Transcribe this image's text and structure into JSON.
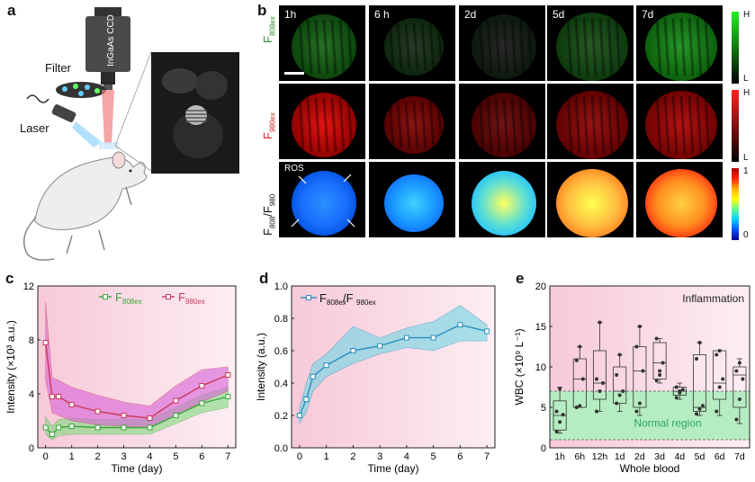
{
  "panels": {
    "a": "a",
    "b": "b",
    "c": "c",
    "d": "d",
    "e": "e"
  },
  "schematic": {
    "filter": "Filter",
    "laser": "Laser",
    "camera": "InGaAs CCD"
  },
  "panel_b": {
    "time_labels": [
      "1h",
      "6 h",
      "2d",
      "5d",
      "7d"
    ],
    "row_labels": [
      {
        "main": "F",
        "sub": "808ex"
      },
      {
        "main": "F",
        "sub": "980ex"
      },
      {
        "main": "F",
        "sub": "808",
        "mid": "/F",
        "sub2": "980"
      }
    ],
    "ros_label": "ROS",
    "green_bar": {
      "high": "H",
      "low": "L",
      "color": "#22dd22"
    },
    "red_bar": {
      "high": "H",
      "low": "L",
      "color": "#ff2020"
    },
    "ratio_bar": {
      "high": "1",
      "low": "0"
    }
  },
  "chart_data": [
    {
      "type": "line",
      "panel": "c",
      "xlabel": "Time (day)",
      "ylabel": "Intensity (×10³ a.u.)",
      "xlim": [
        -0.3,
        7.3
      ],
      "ylim": [
        0,
        12
      ],
      "xticks": [
        0,
        1,
        2,
        3,
        4,
        5,
        6,
        7
      ],
      "yticks": [
        0,
        4,
        8,
        12
      ],
      "series": [
        {
          "name": "F808ex",
          "name_main": "F",
          "name_sub": "808ex",
          "color": "#3aa63a",
          "fill": "#7fdc7f",
          "x": [
            0,
            0.25,
            0.5,
            1,
            2,
            3,
            4,
            5,
            6,
            7
          ],
          "y": [
            1.5,
            1.0,
            1.5,
            1.6,
            1.5,
            1.5,
            1.5,
            2.4,
            3.3,
            3.8
          ],
          "lo": [
            1.0,
            0.6,
            0.9,
            1.0,
            1.0,
            1.0,
            1.0,
            1.8,
            2.6,
            3.0
          ],
          "hi": [
            2.3,
            1.6,
            2.1,
            2.2,
            2.1,
            2.1,
            2.1,
            3.0,
            3.9,
            4.5
          ]
        },
        {
          "name": "F980ex",
          "name_main": "F",
          "name_sub": "980ex",
          "color": "#c83a5a",
          "fill": "#d860d8",
          "x": [
            0,
            0.25,
            0.5,
            1,
            2,
            3,
            4,
            5,
            6,
            7
          ],
          "y": [
            7.8,
            3.8,
            3.8,
            3.2,
            2.7,
            2.4,
            2.2,
            3.5,
            4.6,
            5.4
          ],
          "lo": [
            5.0,
            2.6,
            2.4,
            2.0,
            1.7,
            1.6,
            1.5,
            2.4,
            3.4,
            4.2
          ],
          "hi": [
            10.8,
            5.2,
            5.0,
            4.5,
            3.9,
            3.4,
            3.1,
            4.6,
            5.8,
            6.0
          ]
        }
      ]
    },
    {
      "type": "line",
      "panel": "d",
      "xlabel": "Time (day)",
      "ylabel": "Intensity (a.u.)",
      "xlim": [
        -0.3,
        7.3
      ],
      "ylim": [
        0,
        1.0
      ],
      "xticks": [
        0,
        1,
        2,
        3,
        4,
        5,
        6,
        7
      ],
      "yticks": [
        0.0,
        0.2,
        0.4,
        0.6,
        0.8,
        1.0
      ],
      "series": [
        {
          "name": "F808ex/F980ex",
          "name_main": "F",
          "name_sub": "808ex",
          "name_mid": "/F",
          "name_sub2": "980ex",
          "color": "#2a8fbf",
          "fill": "#6fd6e4",
          "x": [
            0,
            0.25,
            0.5,
            1,
            2,
            3,
            4,
            5,
            6,
            7
          ],
          "y": [
            0.2,
            0.3,
            0.44,
            0.51,
            0.6,
            0.63,
            0.68,
            0.68,
            0.76,
            0.72
          ],
          "lo": [
            0.15,
            0.22,
            0.35,
            0.44,
            0.52,
            0.58,
            0.62,
            0.6,
            0.66,
            0.66
          ],
          "hi": [
            0.25,
            0.4,
            0.52,
            0.58,
            0.75,
            0.68,
            0.74,
            0.78,
            0.88,
            0.76
          ]
        }
      ]
    },
    {
      "type": "box",
      "panel": "e",
      "xlabel": "Whole blood",
      "ylabel": "WBC (×10⁹ L⁻¹)",
      "ylim": [
        0,
        20
      ],
      "yticks": [
        0,
        5,
        10,
        15,
        20
      ],
      "categories": [
        "1h",
        "6h",
        "12h",
        "1d",
        "2d",
        "3d",
        "4d",
        "5d",
        "6d",
        "7d"
      ],
      "boxes": [
        {
          "min": 1.8,
          "q1": 2.2,
          "median": 4.0,
          "q3": 5.8,
          "max": 7.5,
          "points": [
            2.0,
            3.2,
            4.1,
            4.5,
            7.3
          ]
        },
        {
          "min": 5.0,
          "q1": 5.0,
          "median": 8.5,
          "q3": 11.0,
          "max": 12.5,
          "points": [
            5.0,
            5.2,
            8.5,
            10.8,
            12.5
          ]
        },
        {
          "min": 4.5,
          "q1": 6.0,
          "median": 8.0,
          "q3": 12.0,
          "max": 15.5,
          "points": [
            4.5,
            7.0,
            8.0,
            8.5,
            15.5
          ]
        },
        {
          "min": 4.5,
          "q1": 5.5,
          "median": 7.0,
          "q3": 10.0,
          "max": 11.5,
          "points": [
            5.5,
            6.5,
            7.0,
            9.0,
            11.5
          ]
        },
        {
          "min": 4.0,
          "q1": 5.0,
          "median": 9.5,
          "q3": 12.5,
          "max": 15.0,
          "points": [
            4.5,
            5.5,
            9.5,
            12.5,
            15.0
          ]
        },
        {
          "min": 8.0,
          "q1": 8.5,
          "median": 10.5,
          "q3": 13.0,
          "max": 13.5,
          "points": [
            8.3,
            9.0,
            10.5,
            13.5,
            9.5
          ]
        },
        {
          "min": 6.0,
          "q1": 6.5,
          "median": 7.0,
          "q3": 7.5,
          "max": 8.0,
          "points": [
            6.2,
            6.8,
            7.2,
            7.5,
            7.0
          ]
        },
        {
          "min": 4.0,
          "q1": 4.5,
          "median": 5.0,
          "q3": 11.5,
          "max": 13.0,
          "points": [
            4.2,
            4.8,
            5.2,
            11.0,
            13.0
          ]
        },
        {
          "min": 4.0,
          "q1": 6.0,
          "median": 8.0,
          "q3": 12.0,
          "max": 12.0,
          "points": [
            4.5,
            7.5,
            8.5,
            11.5,
            12.0
          ]
        },
        {
          "min": 3.0,
          "q1": 5.0,
          "median": 9.0,
          "q3": 10.0,
          "max": 11.0,
          "points": [
            3.5,
            6.0,
            8.5,
            9.5,
            10.5
          ]
        }
      ],
      "inflammation_label": "Inflammation",
      "normal_label": "Normal region",
      "normal_range": [
        1,
        7
      ]
    }
  ]
}
